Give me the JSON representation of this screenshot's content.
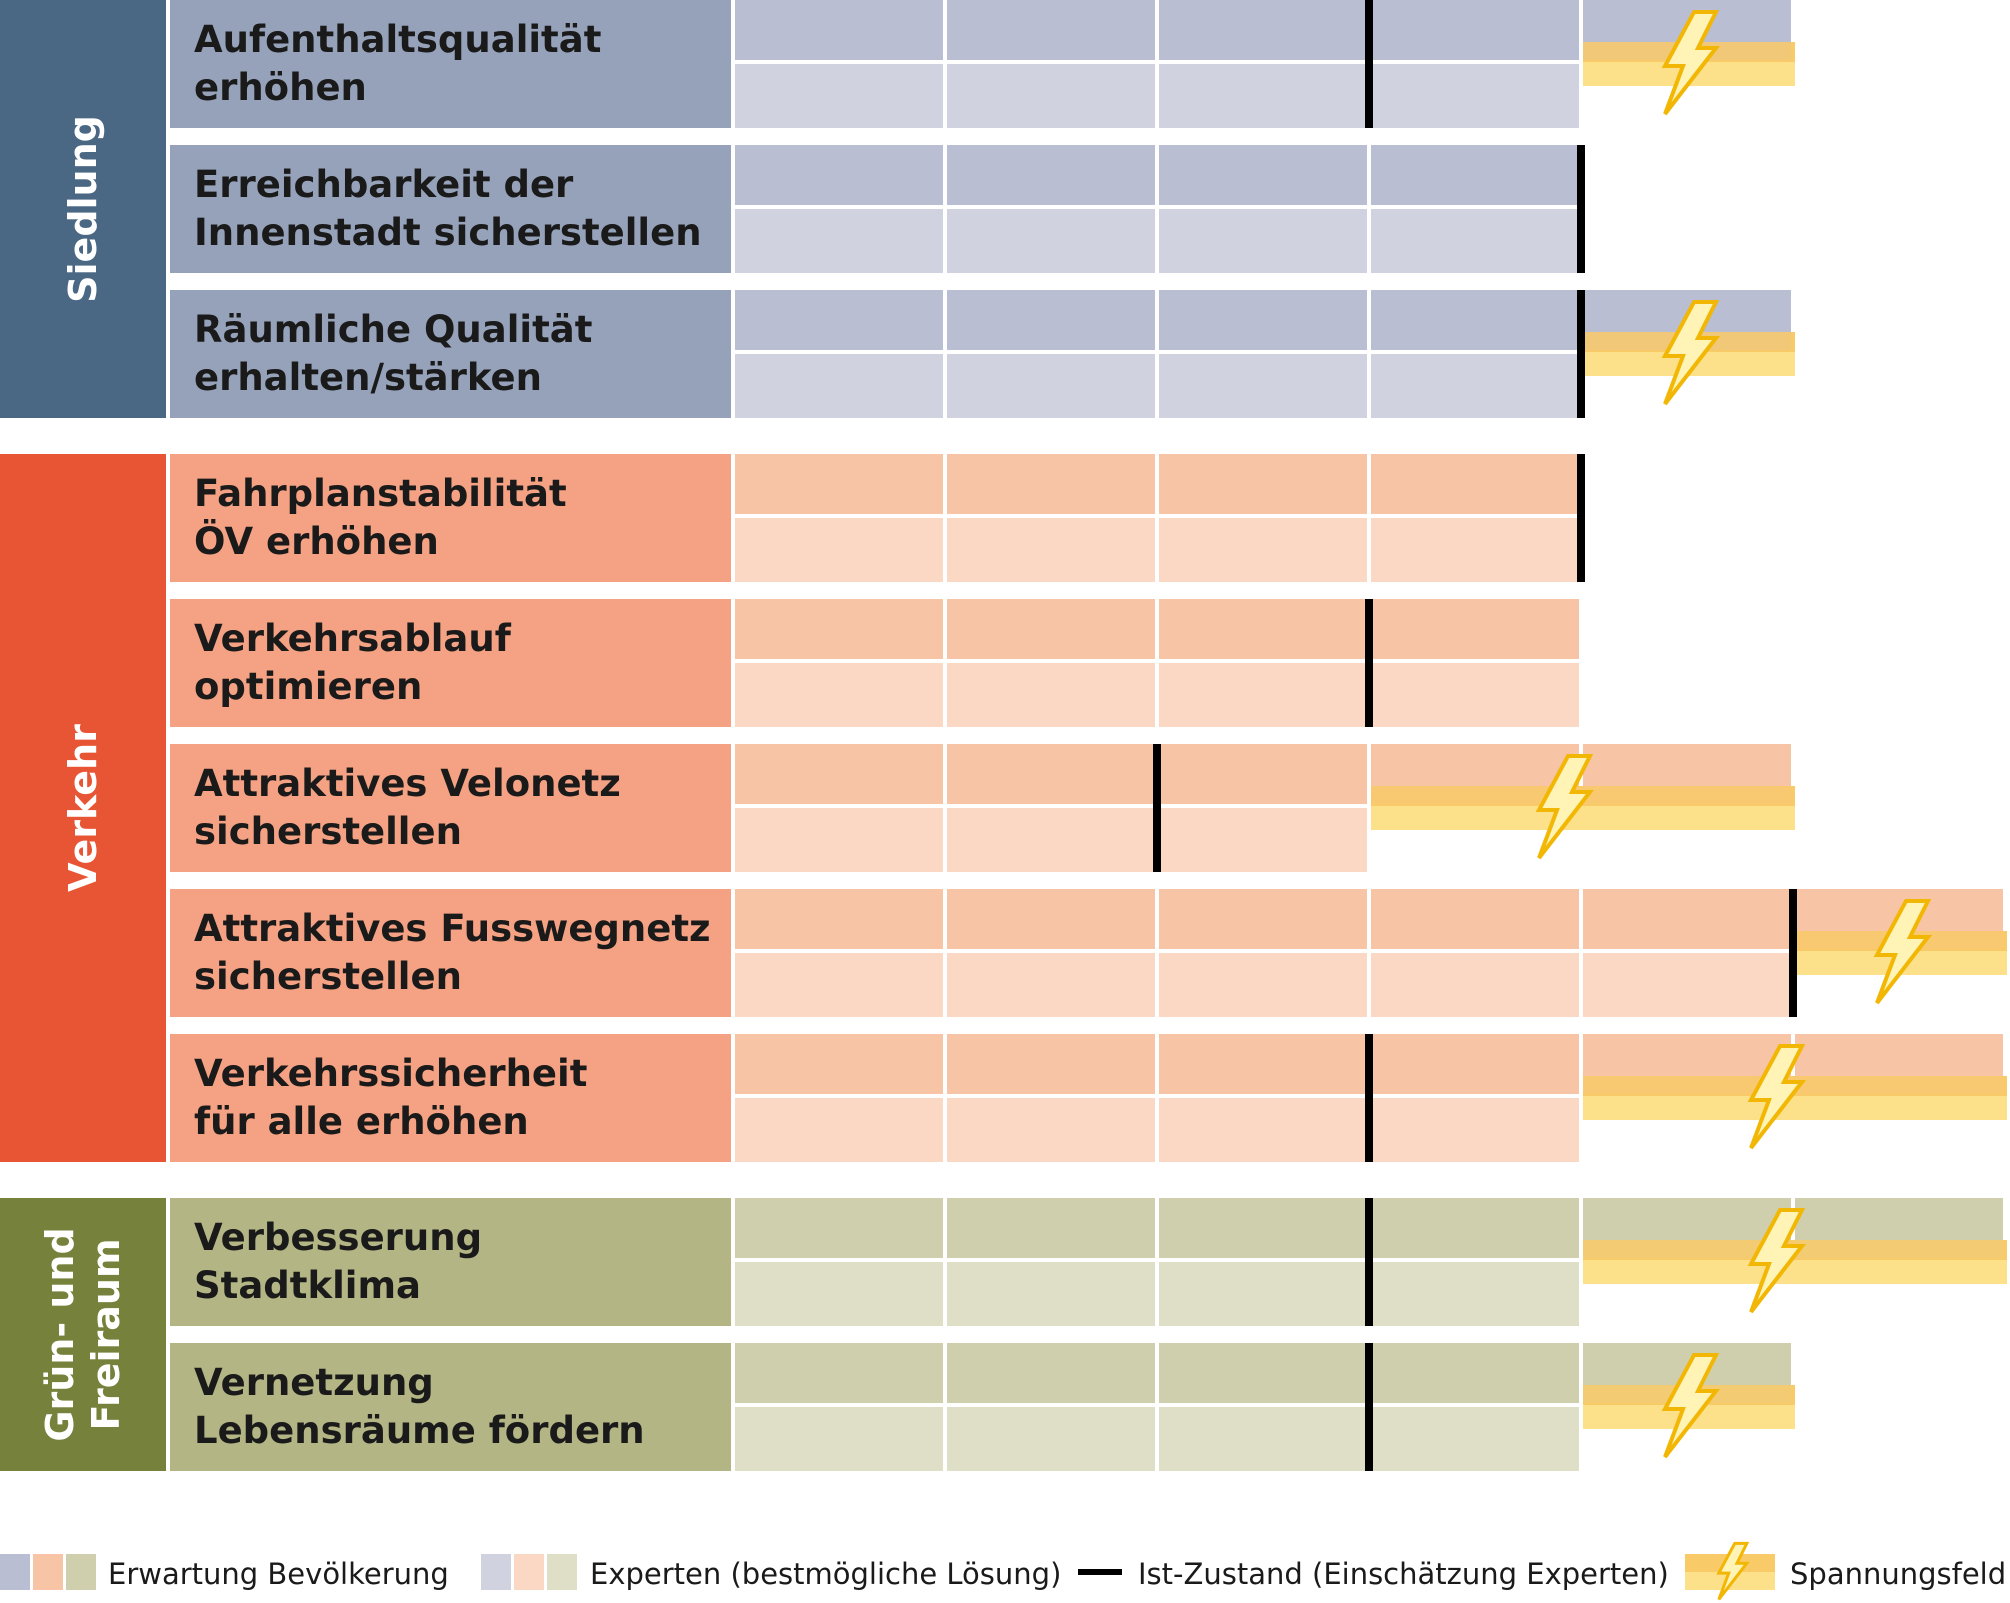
{
  "chart_data": {
    "type": "bar",
    "scale_steps": 6,
    "groups": [
      {
        "name": "Siedlung",
        "palette": {
          "category": "#4a6784",
          "label": "#95a2ba",
          "expect": "#b9bed2",
          "expert": "#d0d2df"
        },
        "rows": [
          {
            "label": [
              "Aufenthaltsqualität",
              "erhöhen"
            ],
            "expectation": 5,
            "expert": 4,
            "current": 3,
            "tension": true
          },
          {
            "label": [
              "Erreichbarkeit der",
              "Innenstadt sicherstellen"
            ],
            "expectation": 4,
            "expert": 4,
            "current": 4,
            "tension": false
          },
          {
            "label": [
              "Räumliche Qualität",
              "erhalten/stärken"
            ],
            "expectation": 5,
            "expert": 4,
            "current": 4,
            "tension": true
          }
        ]
      },
      {
        "name": "Verkehr",
        "palette": {
          "category": "#e85535",
          "label": "#f4a283",
          "expect": "#f8c4a6",
          "expert": "#fad8c4"
        },
        "rows": [
          {
            "label": [
              "Fahrplanstabilität",
              "ÖV erhöhen"
            ],
            "expectation": 4,
            "expert": 4,
            "current": 4,
            "tension": false
          },
          {
            "label": [
              "Verkehrsablauf",
              "optimieren"
            ],
            "expectation": 4,
            "expert": 4,
            "current": 3,
            "tension": false
          },
          {
            "label": [
              "Attraktives Velonetz",
              "sicherstellen"
            ],
            "expectation": 5,
            "expert": 3,
            "current": 2,
            "tension": true
          },
          {
            "label": [
              "Attraktives Fusswegnetz",
              "sicherstellen"
            ],
            "expectation": 6,
            "expert": 5,
            "current": 5,
            "tension": true
          },
          {
            "label": [
              "Verkehrssicherheit",
              "für alle erhöhen"
            ],
            "expectation": 6,
            "expert": 4,
            "current": 3,
            "tension": true
          }
        ]
      },
      {
        "name": "Grün- und Freiraum",
        "name_lines": [
          "Grün- und",
          "Freiraum"
        ],
        "palette": {
          "category": "#76813b",
          "label": "#b4b584",
          "expect": "#d0cfad",
          "expert": "#dfdec7"
        },
        "rows": [
          {
            "label": [
              "Verbesserung",
              "Stadtklima"
            ],
            "expectation": 6,
            "expert": 4,
            "current": 3,
            "tension": true
          },
          {
            "label": [
              "Vernetzung",
              "Lebensräume fördern"
            ],
            "expectation": 5,
            "expert": 4,
            "current": 3,
            "tension": true
          }
        ]
      }
    ],
    "legend": {
      "expectation": "Erwartung Bevölkerung",
      "expert": "Experten (bestmögliche Lösung)",
      "current": "Ist-Zustand (Einschätzung Experten)",
      "tension": "Spannungsfeld"
    },
    "colors": {
      "current_marker": "#000000",
      "tension_dark": "#f9ca68",
      "tension_light": "#fce08a",
      "bolt_fill": "#fff3b5",
      "bolt_stroke": "#f2b705"
    }
  }
}
